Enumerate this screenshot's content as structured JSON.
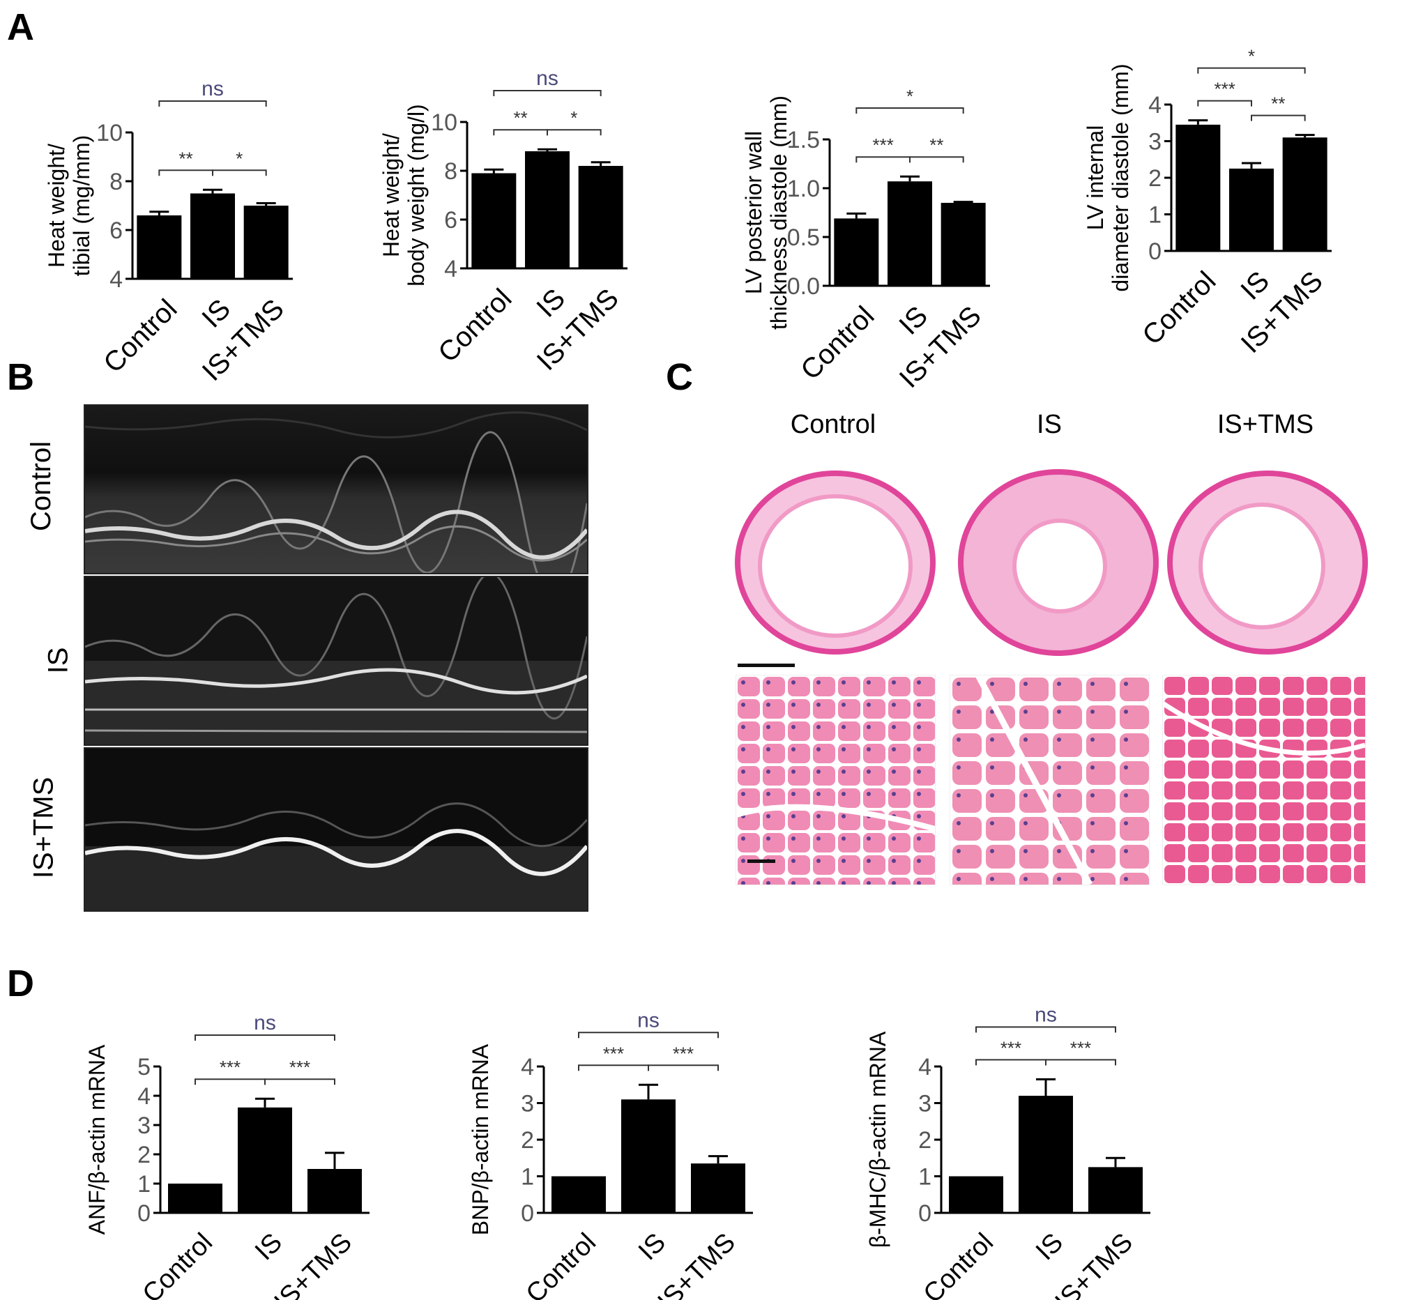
{
  "panels": {
    "a": "A",
    "b": "B",
    "c": "C",
    "d": "D"
  },
  "colors": {
    "bar": "#000000",
    "he_stain": "#e0459a",
    "he_tissue": "#f08bb5",
    "nuclei": "#5b3f8f",
    "ns_text": "#4a4a7a"
  },
  "chart_data": [
    {
      "type": "bar",
      "panel": "A",
      "ylabel": [
        "Heat weight/",
        "tibial (mg/mm)"
      ],
      "categories": [
        "Control",
        "IS",
        "IS+TMS"
      ],
      "values": [
        6.6,
        7.5,
        7.0
      ],
      "errors": [
        0.15,
        0.15,
        0.1
      ],
      "ylim": [
        4,
        10
      ],
      "yticks": [
        "4",
        "6",
        "8",
        "10"
      ],
      "sig": [
        {
          "from": 0,
          "to": 2,
          "label": "ns"
        },
        {
          "from": 0,
          "to": 1,
          "label": "**"
        },
        {
          "from": 1,
          "to": 2,
          "label": "*"
        }
      ]
    },
    {
      "type": "bar",
      "panel": "A",
      "ylabel": [
        "Heat weight/",
        "body weight (mg/l)"
      ],
      "categories": [
        "Control",
        "IS",
        "IS+TMS"
      ],
      "values": [
        7.9,
        8.8,
        8.2
      ],
      "errors": [
        0.15,
        0.08,
        0.15
      ],
      "ylim": [
        4,
        10
      ],
      "yticks": [
        "4",
        "6",
        "8",
        "10"
      ],
      "sig": [
        {
          "from": 0,
          "to": 2,
          "label": "ns"
        },
        {
          "from": 0,
          "to": 1,
          "label": "**"
        },
        {
          "from": 1,
          "to": 2,
          "label": "*"
        }
      ]
    },
    {
      "type": "bar",
      "panel": "A",
      "ylabel": [
        "LV posterior wall",
        "thickness diastole (mm)"
      ],
      "categories": [
        "Control",
        "IS",
        "IS+TMS"
      ],
      "values": [
        0.69,
        1.07,
        0.85
      ],
      "errors": [
        0.05,
        0.05,
        0.01
      ],
      "ylim": [
        0,
        1.5
      ],
      "yticks": [
        "0.0",
        "0.5",
        "1.0",
        "1.5"
      ],
      "sig": [
        {
          "from": 0,
          "to": 2,
          "label": "*"
        },
        {
          "from": 0,
          "to": 1,
          "label": "***"
        },
        {
          "from": 1,
          "to": 2,
          "label": "**"
        }
      ]
    },
    {
      "type": "bar",
      "panel": "A",
      "ylabel": [
        "LV internal",
        "diameter diastole (mm)"
      ],
      "categories": [
        "Control",
        "IS",
        "IS+TMS"
      ],
      "values": [
        3.45,
        2.25,
        3.1
      ],
      "errors": [
        0.12,
        0.15,
        0.07
      ],
      "ylim": [
        0,
        4
      ],
      "yticks": [
        "0",
        "1",
        "2",
        "3",
        "4"
      ],
      "sig": [
        {
          "from": 0,
          "to": 2,
          "label": "*"
        },
        {
          "from": 0,
          "to": 1,
          "label": "***"
        },
        {
          "from": 1,
          "to": 2,
          "label": "**"
        }
      ]
    },
    {
      "type": "bar",
      "panel": "D",
      "ylabel": [
        "ANF/β-actin mRNA"
      ],
      "categories": [
        "Control",
        "IS",
        "IS+TMS"
      ],
      "values": [
        1.0,
        3.6,
        1.5
      ],
      "errors": [
        0,
        0.3,
        0.55
      ],
      "ylim": [
        0,
        5
      ],
      "yticks": [
        "0",
        "1",
        "2",
        "3",
        "4",
        "5"
      ],
      "sig": [
        {
          "from": 0,
          "to": 2,
          "label": "ns"
        },
        {
          "from": 0,
          "to": 1,
          "label": "***"
        },
        {
          "from": 1,
          "to": 2,
          "label": "***"
        }
      ]
    },
    {
      "type": "bar",
      "panel": "D",
      "ylabel": [
        "BNP/β-actin mRNA"
      ],
      "categories": [
        "Control",
        "IS",
        "IS+TMS"
      ],
      "values": [
        1.0,
        3.1,
        1.35
      ],
      "errors": [
        0,
        0.4,
        0.2
      ],
      "ylim": [
        0,
        4
      ],
      "yticks": [
        "0",
        "1",
        "2",
        "3",
        "4"
      ],
      "sig": [
        {
          "from": 0,
          "to": 2,
          "label": "ns"
        },
        {
          "from": 0,
          "to": 1,
          "label": "***"
        },
        {
          "from": 1,
          "to": 2,
          "label": "***"
        }
      ]
    },
    {
      "type": "bar",
      "panel": "D",
      "ylabel": [
        "β-MHC/β-actin mRNA"
      ],
      "categories": [
        "Control",
        "IS",
        "IS+TMS"
      ],
      "values": [
        1.0,
        3.2,
        1.25
      ],
      "errors": [
        0,
        0.45,
        0.25
      ],
      "ylim": [
        0,
        4
      ],
      "yticks": [
        "0",
        "1",
        "2",
        "3",
        "4"
      ],
      "sig": [
        {
          "from": 0,
          "to": 2,
          "label": "ns"
        },
        {
          "from": 0,
          "to": 1,
          "label": "***"
        },
        {
          "from": 1,
          "to": 2,
          "label": "***"
        }
      ]
    }
  ],
  "echo_labels": [
    "Control",
    "IS",
    "IS+TMS"
  ],
  "histology_labels": [
    "Control",
    "IS",
    "IS+TMS"
  ]
}
